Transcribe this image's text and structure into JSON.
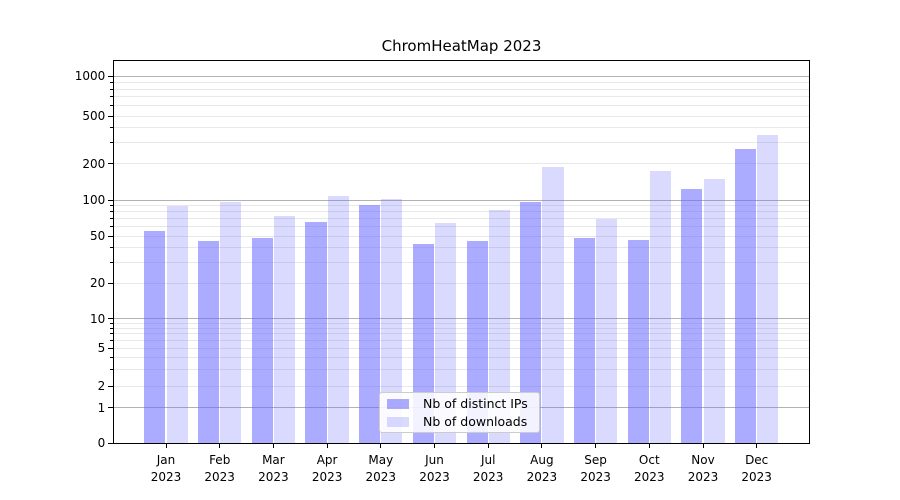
{
  "chart_data": {
    "type": "bar",
    "title": "ChromHeatMap 2023",
    "x": {
      "months": [
        "Jan",
        "Feb",
        "Mar",
        "Apr",
        "May",
        "Jun",
        "Jul",
        "Aug",
        "Sep",
        "Oct",
        "Nov",
        "Dec"
      ],
      "year": "2023"
    },
    "series": [
      {
        "name": "Nb of distinct IPs",
        "color": "rgba(102,102,255,0.55)",
        "values": [
          55,
          45,
          48,
          65,
          90,
          43,
          45,
          96,
          48,
          46,
          124,
          266
        ]
      },
      {
        "name": "Nb of downloads",
        "color": "rgba(102,102,255,0.24)",
        "values": [
          89,
          97,
          73,
          107,
          102,
          64,
          83,
          188,
          69,
          175,
          150,
          345
        ]
      }
    ],
    "y_axis": {
      "scale": "symlog",
      "ticks": [
        0,
        1,
        2,
        5,
        10,
        20,
        50,
        100,
        200,
        500,
        1000
      ],
      "range": [
        0,
        1350
      ]
    },
    "grid": true,
    "legend_position": "lower center",
    "colors": {
      "bar_base": "#6666ff",
      "grid_minor": "#e8e8e8",
      "grid_major": "#b2b2b2",
      "spine": "#000000"
    }
  }
}
